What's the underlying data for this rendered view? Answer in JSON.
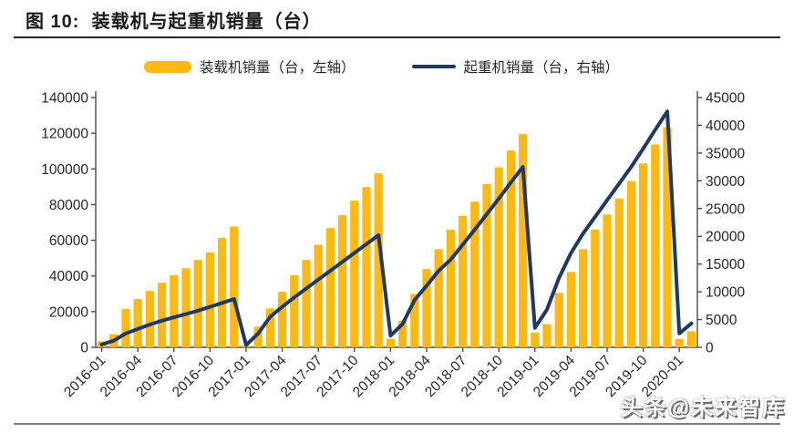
{
  "figure": {
    "title": "图 10:  装载机与起重机销量（台）",
    "watermark": "头条@未来智库"
  },
  "legend": {
    "items": [
      {
        "label": "装载机销量（台，左轴）",
        "type": "bar",
        "color": "#FCB813"
      },
      {
        "label": "起重机销量（台，右轴）",
        "type": "line",
        "color": "#1F3864"
      }
    ]
  },
  "chart_data": {
    "type": "combo",
    "title": "装载机与起重机销量（台）",
    "xlabel": "",
    "ylabel_left": "",
    "ylabel_right": "",
    "grid": false,
    "legend_position": "top",
    "categories": [
      "2016-01",
      "2016-02",
      "2016-03",
      "2016-04",
      "2016-05",
      "2016-06",
      "2016-07",
      "2016-08",
      "2016-09",
      "2016-10",
      "2016-11",
      "2016-12",
      "2017-01",
      "2017-02",
      "2017-03",
      "2017-04",
      "2017-05",
      "2017-06",
      "2017-07",
      "2017-08",
      "2017-09",
      "2017-10",
      "2017-11",
      "2017-12",
      "2018-01",
      "2018-02",
      "2018-03",
      "2018-04",
      "2018-05",
      "2018-06",
      "2018-07",
      "2018-08",
      "2018-09",
      "2018-10",
      "2018-11",
      "2018-12",
      "2019-01",
      "2019-02",
      "2019-03",
      "2019-04",
      "2019-05",
      "2019-06",
      "2019-07",
      "2019-08",
      "2019-09",
      "2019-10",
      "2019-11",
      "2019-12",
      "2020-01",
      "2020-02"
    ],
    "series": [
      {
        "name": "装载机销量（台，左轴）",
        "type": "bar",
        "axis": "left",
        "color": "#FCB813",
        "values": [
          3400,
          7400,
          21500,
          27000,
          31600,
          36200,
          40500,
          44300,
          49000,
          53200,
          61400,
          67700,
          1000,
          11600,
          21800,
          31200,
          40500,
          49000,
          57500,
          66900,
          74000,
          82200,
          89800,
          97500,
          4800,
          15000,
          29800,
          43900,
          55000,
          66000,
          73700,
          81700,
          91500,
          100900,
          110300,
          119500,
          8300,
          13000,
          30500,
          42200,
          55000,
          66000,
          74500,
          83500,
          93200,
          103100,
          113700,
          123300,
          4700,
          9000
        ]
      },
      {
        "name": "起重机销量（台，右轴）",
        "type": "line",
        "axis": "right",
        "color": "#1F3864",
        "values": [
          500,
          1200,
          2500,
          3300,
          4100,
          4800,
          5400,
          6000,
          6600,
          7300,
          8000,
          8700,
          400,
          2500,
          5500,
          7300,
          9000,
          10600,
          12200,
          13800,
          15400,
          17000,
          18600,
          20200,
          2100,
          4200,
          8500,
          11100,
          13800,
          15800,
          18500,
          21200,
          24000,
          26800,
          29700,
          32500,
          3500,
          6800,
          12500,
          17000,
          20500,
          23500,
          26500,
          29500,
          32500,
          35800,
          39200,
          42500,
          2500,
          4300
        ]
      }
    ],
    "left_axis": {
      "min": 0,
      "max": 140000,
      "step": 20000,
      "ticks": [
        "0",
        "20000",
        "40000",
        "60000",
        "80000",
        "100000",
        "120000",
        "140000"
      ]
    },
    "right_axis": {
      "min": 0,
      "max": 45000,
      "step": 5000,
      "ticks": [
        "0",
        "5000",
        "10000",
        "15000",
        "20000",
        "25000",
        "30000",
        "35000",
        "40000",
        "45000"
      ]
    },
    "x_tick_every": 3,
    "x_tick_labels": [
      "2016-01",
      "2016-04",
      "2016-07",
      "2016-10",
      "2017-01",
      "2017-04",
      "2017-07",
      "2017-10",
      "2018-01",
      "2018-04",
      "2018-07",
      "2018-10",
      "2019-01",
      "2019-04",
      "2019-07",
      "2019-10",
      "2020-01"
    ]
  }
}
